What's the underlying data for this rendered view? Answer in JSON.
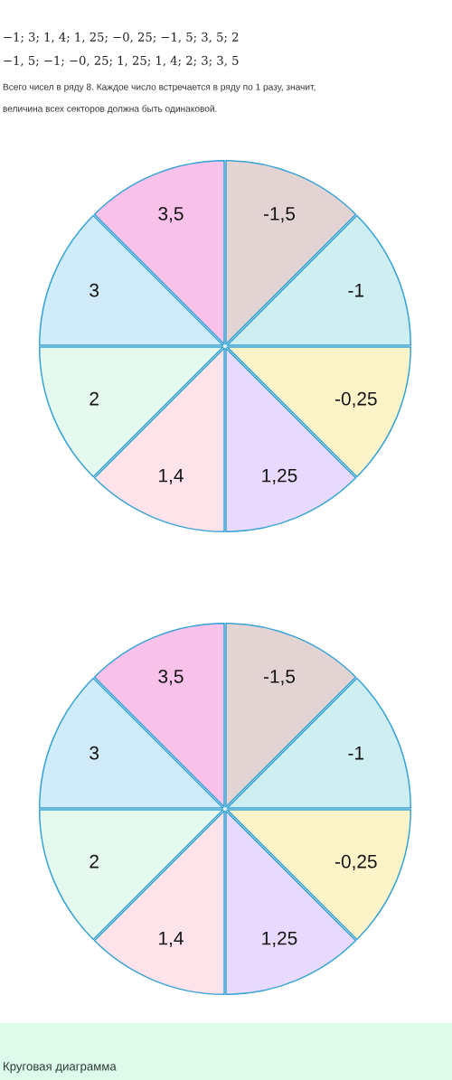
{
  "chart_data": [
    {
      "type": "pie",
      "categories": [
        "-1,5",
        "-1",
        "-0,25",
        "1,25",
        "1,4",
        "2",
        "3",
        "3,5"
      ],
      "values": [
        12.5,
        12.5,
        12.5,
        12.5,
        12.5,
        12.5,
        12.5,
        12.5
      ],
      "colors": [
        "#e3d3d3",
        "#cfeef2",
        "#fdf3c9",
        "#e8dafe",
        "#ffe3ea",
        "#e6f9ef",
        "#d0ecfa",
        "#f9c2ea"
      ],
      "annotations": [
        "−1; 3; 1, 4; 1, 25; −0, 25; −1, 5; 3, 5; 2",
        "−1, 5; −1; −0, 25; 1, 25; 1, 4; 2; 3; 3, 5",
        "Всего чисел в ряду 8. Каждое число встречается в ряду по 1 разу, значит,",
        "величина всех секторов должна быть одинаковой."
      ]
    },
    {
      "type": "pie",
      "categories": [
        "-1,5",
        "-1",
        "-0,25",
        "1,25",
        "1,4",
        "2",
        "3",
        "3,5"
      ],
      "values": [
        12.5,
        12.5,
        12.5,
        12.5,
        12.5,
        12.5,
        12.5,
        12.5
      ],
      "colors": [
        "#e3d3d3",
        "#cfeef2",
        "#fdf3c9",
        "#e8dafe",
        "#ffe3ea",
        "#e6f9ef",
        "#d0ecfa",
        "#f9c2ea"
      ],
      "annotations": [
        "Круговая диаграмма"
      ]
    }
  ]
}
